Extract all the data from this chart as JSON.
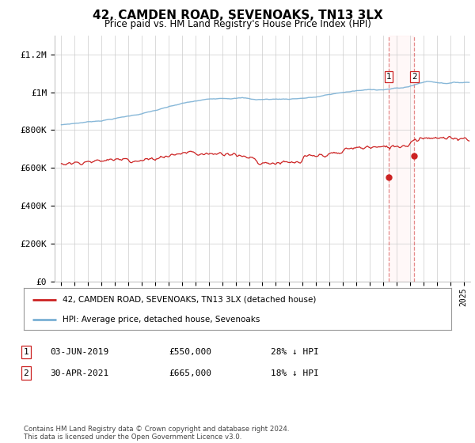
{
  "title": "42, CAMDEN ROAD, SEVENOAKS, TN13 3LX",
  "subtitle": "Price paid vs. HM Land Registry's House Price Index (HPI)",
  "ylabel_ticks": [
    "£0",
    "£200K",
    "£400K",
    "£600K",
    "£800K",
    "£1M",
    "£1.2M"
  ],
  "ytick_values": [
    0,
    200000,
    400000,
    600000,
    800000,
    1000000,
    1200000
  ],
  "ylim": [
    0,
    1300000
  ],
  "xlim_start": 1994.5,
  "xlim_end": 2025.5,
  "hpi_color": "#7ab0d4",
  "price_color": "#cc2222",
  "marker1_date": 2019.42,
  "marker1_price": 550000,
  "marker2_date": 2021.33,
  "marker2_price": 665000,
  "legend_line1": "42, CAMDEN ROAD, SEVENOAKS, TN13 3LX (detached house)",
  "legend_line2": "HPI: Average price, detached house, Sevenoaks",
  "footer": "Contains HM Land Registry data © Crown copyright and database right 2024.\nThis data is licensed under the Open Government Licence v3.0.",
  "background_color": "#ffffff",
  "grid_color": "#cccccc"
}
